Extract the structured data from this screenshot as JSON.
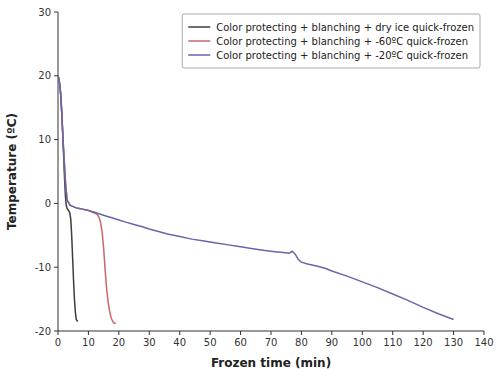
{
  "chart_data": {
    "type": "line",
    "xlabel": "Frozen time (min)",
    "ylabel": "Temperature (ºC)",
    "xlim": [
      0,
      140
    ],
    "ylim": [
      -20,
      30
    ],
    "xticks": [
      0,
      10,
      20,
      30,
      40,
      50,
      60,
      70,
      80,
      90,
      100,
      110,
      120,
      130,
      140
    ],
    "yticks": [
      -20,
      -10,
      0,
      10,
      20,
      30
    ],
    "legend": "upper right",
    "series": [
      {
        "name": "Color protecting + blanching + dry ice quick-frozen",
        "color": "#3d3d3d",
        "x": [
          0,
          0.3,
          0.6,
          0.9,
          1.2,
          1.5,
          1.8,
          2.1,
          2.4,
          2.7,
          3.0,
          3.3,
          3.6,
          3.9,
          4.2,
          4.5,
          4.8,
          5.1,
          5.4,
          5.7,
          6.0,
          6.5
        ],
        "values": [
          20,
          19.5,
          18.5,
          17.0,
          14.5,
          11.5,
          8.0,
          4.5,
          1.5,
          -0.3,
          -0.8,
          -1.0,
          -1.2,
          -1.5,
          -2.5,
          -5.0,
          -8.5,
          -12.0,
          -15.0,
          -17.0,
          -18.2,
          -18.5
        ]
      },
      {
        "name": "Color protecting + blanching + -60ºC quick-frozen",
        "color": "#cc6666",
        "x": [
          0,
          0.3,
          0.6,
          0.9,
          1.2,
          1.5,
          2.0,
          2.5,
          3.0,
          4.0,
          5.0,
          6.0,
          7.0,
          8.0,
          9.0,
          10.0,
          11.0,
          12.0,
          13.0,
          13.5,
          14.0,
          14.5,
          15.0,
          15.5,
          16.0,
          16.5,
          17.0,
          17.5,
          18.0,
          18.5,
          19.0
        ],
        "values": [
          20,
          19.5,
          18.5,
          17.0,
          14.5,
          11.5,
          7.0,
          3.0,
          0.5,
          -0.3,
          -0.5,
          -0.7,
          -0.8,
          -0.9,
          -1.0,
          -1.1,
          -1.3,
          -1.5,
          -1.8,
          -2.2,
          -3.0,
          -4.5,
          -7.0,
          -10.5,
          -13.5,
          -15.5,
          -17.0,
          -18.0,
          -18.5,
          -18.8,
          -18.8
        ]
      },
      {
        "name": "Color protecting + blanching + -20ºC quick-frozen",
        "color": "#6666aa",
        "x": [
          0,
          0.3,
          0.6,
          0.9,
          1.2,
          1.5,
          2.0,
          2.5,
          3.0,
          4.0,
          5.0,
          6.0,
          7.0,
          8.0,
          9.0,
          10.0,
          12.0,
          14.0,
          16.0,
          18.0,
          20.0,
          22.0,
          25.0,
          28.0,
          30.0,
          33.0,
          36.0,
          40.0,
          44.0,
          48.0,
          52.0,
          56.0,
          60.0,
          64.0,
          68.0,
          70.0,
          72.0,
          74.0,
          76.0,
          77.0,
          78.0,
          79.0,
          80.0,
          82.0,
          85.0,
          88.0,
          90.0,
          95.0,
          100.0,
          105.0,
          110.0,
          115.0,
          120.0,
          125.0,
          130.0
        ],
        "values": [
          20,
          19.5,
          18.5,
          17.0,
          14.5,
          11.5,
          7.0,
          3.0,
          0.5,
          -0.3,
          -0.5,
          -0.7,
          -0.8,
          -0.9,
          -1.0,
          -1.1,
          -1.4,
          -1.7,
          -2.0,
          -2.3,
          -2.6,
          -2.9,
          -3.3,
          -3.7,
          -4.0,
          -4.4,
          -4.8,
          -5.2,
          -5.6,
          -5.9,
          -6.2,
          -6.5,
          -6.8,
          -7.1,
          -7.4,
          -7.5,
          -7.6,
          -7.7,
          -7.8,
          -7.5,
          -8.0,
          -8.8,
          -9.2,
          -9.5,
          -9.8,
          -10.2,
          -10.6,
          -11.4,
          -12.3,
          -13.2,
          -14.2,
          -15.2,
          -16.3,
          -17.3,
          -18.2
        ]
      }
    ]
  }
}
